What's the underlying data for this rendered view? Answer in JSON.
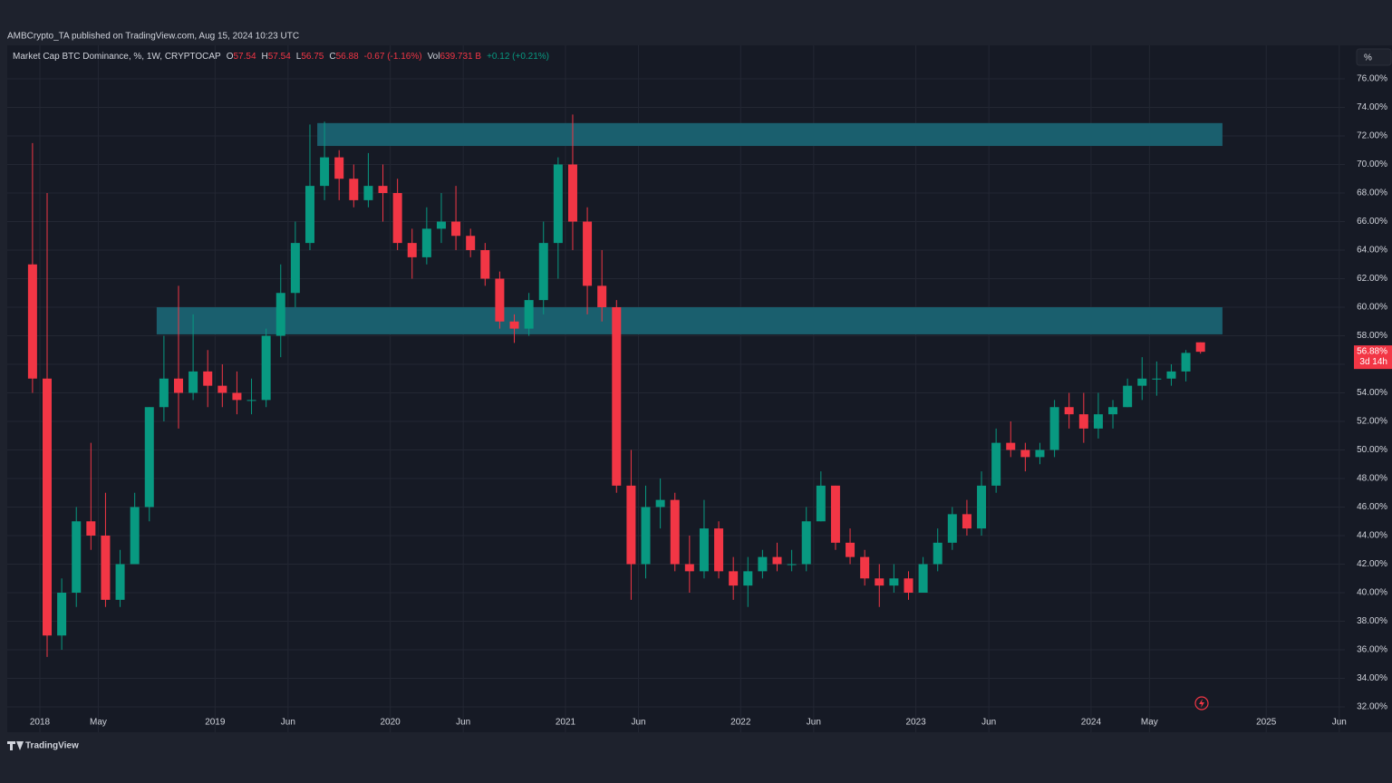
{
  "header": {
    "published": "AMBCrypto_TA published on TradingView.com, Aug 15, 2024 10:23 UTC",
    "symbol": "Market Cap BTC Dominance, %, 1W, CRYPTOCAP",
    "o": "O",
    "h": "H",
    "l": "L",
    "c": "C",
    "change": "-0.67 (-1.16%)",
    "vol_label": "Vol",
    "vol": "639.731 B",
    "vol_change": "+0.12 (+0.21%)",
    "scale_button": "%"
  },
  "footer": {
    "brand": "TradingView"
  },
  "chart_data": {
    "type": "candlestick",
    "up_color": "#089981",
    "down_color": "#f23645",
    "grid": true,
    "x": [
      "2017-12",
      "2018-01",
      "2018-02",
      "2018-03",
      "2018-04",
      "2018-05",
      "2018-06",
      "2018-07",
      "2018-08",
      "2018-09",
      "2018-10",
      "2018-11",
      "2018-12",
      "2019-01",
      "2019-02",
      "2019-03",
      "2019-04",
      "2019-05",
      "2019-06",
      "2019-07",
      "2019-08",
      "2019-09",
      "2019-10",
      "2019-11",
      "2019-12",
      "2020-01",
      "2020-02",
      "2020-03",
      "2020-04",
      "2020-05",
      "2020-06",
      "2020-07",
      "2020-08",
      "2020-09",
      "2020-10",
      "2020-11",
      "2020-12",
      "2021-01",
      "2021-02",
      "2021-03",
      "2021-04",
      "2021-05",
      "2021-06",
      "2021-07",
      "2021-08",
      "2021-09",
      "2021-10",
      "2021-11",
      "2021-12",
      "2022-01",
      "2022-02",
      "2022-03",
      "2022-04",
      "2022-05",
      "2022-06",
      "2022-07",
      "2022-08",
      "2022-09",
      "2022-10",
      "2022-11",
      "2022-12",
      "2023-01",
      "2023-02",
      "2023-03",
      "2023-04",
      "2023-05",
      "2023-06",
      "2023-07",
      "2023-08",
      "2023-09",
      "2023-10",
      "2023-11",
      "2023-12",
      "2024-01",
      "2024-02",
      "2024-03",
      "2024-04",
      "2024-05",
      "2024-06",
      "2024-07",
      "2024-08"
    ],
    "open": [
      63,
      55,
      37,
      40,
      45,
      44,
      39.5,
      42,
      46,
      53,
      55,
      54,
      55.5,
      54.5,
      54,
      53.5,
      53.5,
      58,
      61,
      64.5,
      68.5,
      70.5,
      69,
      67.5,
      68.5,
      68,
      64.5,
      63.5,
      65.5,
      66,
      65,
      64,
      62,
      59,
      58.5,
      60.5,
      64.5,
      70,
      66,
      61.5,
      60,
      47.5,
      42,
      46,
      46.5,
      42,
      41.5,
      44.5,
      41.5,
      40.5,
      41.5,
      42.5,
      42,
      42,
      45,
      47.5,
      43.5,
      42.5,
      41,
      40.5,
      41,
      40,
      42,
      43.5,
      45.5,
      44.5,
      47.5,
      50.5,
      50,
      49.5,
      50,
      53,
      52.5,
      51.5,
      52.5,
      53,
      54.5,
      55,
      55,
      55.5,
      57.54
    ],
    "high": [
      71.5,
      68,
      41,
      46,
      50.5,
      47,
      43,
      47,
      53,
      58,
      61.5,
      59.5,
      57,
      56,
      55.5,
      55,
      58.5,
      63,
      66,
      72.8,
      73,
      71,
      70,
      70.8,
      70,
      69,
      65.5,
      67,
      68,
      68.5,
      65.5,
      64.5,
      62.5,
      59.5,
      61,
      66,
      70.5,
      73.5,
      67,
      64,
      60.5,
      50,
      47.5,
      48,
      47,
      44,
      46.5,
      45,
      42.5,
      42.5,
      43,
      43.5,
      43,
      46,
      48.5,
      47.5,
      44.5,
      43,
      42,
      42,
      41.5,
      42.5,
      44.5,
      46,
      46.5,
      48.5,
      51.5,
      52,
      50.5,
      50.5,
      53.5,
      54,
      54,
      54,
      53.5,
      55,
      56.5,
      56.2,
      56,
      57,
      57.54
    ],
    "low": [
      54,
      35.5,
      36,
      39,
      43,
      39,
      39,
      42,
      45,
      52,
      51.5,
      53.5,
      53,
      53,
      52.5,
      52.5,
      53,
      56.5,
      60,
      64,
      67.5,
      67.5,
      67,
      67,
      66,
      64,
      62,
      63,
      64.5,
      64,
      63.5,
      61.5,
      58.5,
      57.5,
      58,
      59.5,
      62,
      64,
      59.5,
      59,
      47,
      39.5,
      41,
      44.5,
      41.5,
      40,
      41,
      41,
      39.5,
      39,
      41,
      41.5,
      41.5,
      41.5,
      45,
      43,
      42,
      40.5,
      39,
      40,
      39.5,
      40,
      41.5,
      43,
      44,
      44,
      47,
      49.5,
      48.5,
      49,
      49.5,
      51.5,
      50.5,
      50.8,
      51.5,
      53,
      53.5,
      53.8,
      54.5,
      54.8,
      56.75
    ],
    "close": [
      55,
      37,
      40,
      45,
      44,
      39.5,
      42,
      46,
      53,
      55,
      54,
      55.5,
      54.5,
      54,
      53.5,
      53.5,
      58,
      61,
      64.5,
      68.5,
      70.5,
      69,
      67.5,
      68.5,
      68,
      64.5,
      63.5,
      65.5,
      66,
      65,
      64,
      62,
      59,
      58.5,
      60.5,
      64.5,
      70,
      66,
      61.5,
      60,
      47.5,
      42,
      46,
      46.5,
      42,
      41.5,
      44.5,
      41.5,
      40.5,
      41.5,
      42.5,
      42,
      42,
      45,
      47.5,
      43.5,
      42.5,
      41,
      40.5,
      41,
      40,
      42,
      43.5,
      45.5,
      44.5,
      47.5,
      50.5,
      50,
      49.5,
      50,
      53,
      52.5,
      51.5,
      52.5,
      53,
      54.5,
      55,
      55,
      55.5,
      56.8,
      56.88
    ],
    "zones": [
      {
        "ylim": [
          71.3,
          72.9
        ],
        "x": [
          "2019-08",
          "2024-10"
        ],
        "color": "#1a5f6e"
      },
      {
        "ylim": [
          58.1,
          60.0
        ],
        "x": [
          "2018-09",
          "2024-10"
        ],
        "color": "#1a5f6e"
      }
    ],
    "last_label": "56.88%",
    "countdown": "3d 14h",
    "last_color": "#f23645",
    "ylim": [
      32,
      76
    ],
    "yticks": [
      {
        "value": 32,
        "label": "32.00%"
      },
      {
        "value": 34,
        "label": "34.00%"
      },
      {
        "value": 36,
        "label": "36.00%"
      },
      {
        "value": 38,
        "label": "38.00%"
      },
      {
        "value": 40,
        "label": "40.00%"
      },
      {
        "value": 42,
        "label": "42.00%"
      },
      {
        "value": 44,
        "label": "44.00%"
      },
      {
        "value": 46,
        "label": "46.00%"
      },
      {
        "value": 48,
        "label": "48.00%"
      },
      {
        "value": 50,
        "label": "50.00%"
      },
      {
        "value": 52,
        "label": "52.00%"
      },
      {
        "value": 54,
        "label": "54.00%"
      },
      {
        "value": 56,
        "label": "56.00%"
      },
      {
        "value": 58,
        "label": "58.00%"
      },
      {
        "value": 60,
        "label": "60.00%"
      },
      {
        "value": 62,
        "label": "62.00%"
      },
      {
        "value": 64,
        "label": "64.00%"
      },
      {
        "value": 66,
        "label": "66.00%"
      },
      {
        "value": 68,
        "label": "68.00%"
      },
      {
        "value": 70,
        "label": "70.00%"
      },
      {
        "value": 72,
        "label": "72.00%"
      },
      {
        "value": 74,
        "label": "74.00%"
      },
      {
        "value": 76,
        "label": "76.00%"
      }
    ],
    "xticks": [
      {
        "value": "2018-01",
        "label": "2018"
      },
      {
        "value": "2018-05",
        "label": "May"
      },
      {
        "value": "2019-01",
        "label": "2019"
      },
      {
        "value": "2019-06",
        "label": "Jun"
      },
      {
        "value": "2020-01",
        "label": "2020"
      },
      {
        "value": "2020-06",
        "label": "Jun"
      },
      {
        "value": "2021-01",
        "label": "2021"
      },
      {
        "value": "2021-06",
        "label": "Jun"
      },
      {
        "value": "2022-01",
        "label": "2022"
      },
      {
        "value": "2022-06",
        "label": "Jun"
      },
      {
        "value": "2023-01",
        "label": "2023"
      },
      {
        "value": "2023-06",
        "label": "Jun"
      },
      {
        "value": "2024-01",
        "label": "2024"
      },
      {
        "value": "2024-05",
        "label": "May"
      },
      {
        "value": "2025-01",
        "label": "2025"
      },
      {
        "value": "2025-06",
        "label": "Jun"
      }
    ]
  }
}
